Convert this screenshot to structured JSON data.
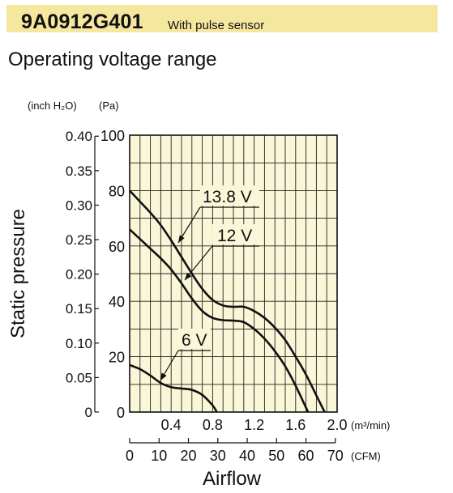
{
  "header": {
    "model": "9A0912G401",
    "subtitle": "With pulse sensor",
    "accent": "#f6e79f"
  },
  "title": "Operating voltage range",
  "chart_data": {
    "type": "line",
    "background": "#faf6d8",
    "grid": true,
    "xlabel": "Airflow",
    "ylabel": "Static pressure",
    "x_primary": {
      "unit": "(m³/min)",
      "range": [
        0,
        2.0
      ],
      "tick_labels": [
        "0.4",
        "0.8",
        "1.2",
        "1.6",
        "2.0"
      ],
      "tick_values": [
        0.4,
        0.8,
        1.2,
        1.6,
        2.0
      ]
    },
    "x_secondary": {
      "unit": "(CFM)",
      "tick_labels": [
        "0",
        "10",
        "20",
        "30",
        "40",
        "50",
        "60",
        "70"
      ],
      "tick_values": [
        0,
        10,
        20,
        30,
        40,
        50,
        60,
        70
      ]
    },
    "y_primary": {
      "unit": "(Pa)",
      "range": [
        0,
        100
      ],
      "tick_labels": [
        "0",
        "20",
        "40",
        "60",
        "80",
        "100"
      ],
      "tick_values": [
        0,
        20,
        40,
        60,
        80,
        100
      ]
    },
    "y_secondary": {
      "unit": "(inch H₂O)",
      "tick_labels": [
        "0",
        "0.05",
        "0.10",
        "0.15",
        "0.20",
        "0.25",
        "0.30",
        "0.35",
        "0.40"
      ],
      "tick_values": [
        0,
        0.05,
        0.1,
        0.15,
        0.2,
        0.25,
        0.3,
        0.35,
        0.4
      ]
    },
    "series": [
      {
        "name": "13.8 V",
        "x": [
          0,
          0.1,
          0.2,
          0.3,
          0.4,
          0.5,
          0.6,
          0.7,
          0.8,
          0.9,
          1.0,
          1.1,
          1.2,
          1.3,
          1.4,
          1.5,
          1.6,
          1.7,
          1.8,
          1.88
        ],
        "y": [
          80,
          76,
          72,
          67.5,
          62,
          56,
          50,
          44.5,
          40.5,
          38.5,
          38,
          38,
          36.5,
          34,
          30.5,
          26,
          20,
          13.5,
          6,
          0
        ]
      },
      {
        "name": "12 V",
        "x": [
          0,
          0.1,
          0.2,
          0.3,
          0.4,
          0.5,
          0.6,
          0.7,
          0.8,
          0.9,
          1.0,
          1.1,
          1.2,
          1.3,
          1.4,
          1.5,
          1.6,
          1.72
        ],
        "y": [
          66,
          62.5,
          59,
          55.5,
          51.5,
          46.5,
          41,
          36.5,
          34,
          33.2,
          33,
          32.5,
          30,
          26.5,
          22,
          16.5,
          9.5,
          0
        ]
      },
      {
        "name": "6 V",
        "x": [
          0,
          0.1,
          0.2,
          0.3,
          0.4,
          0.5,
          0.6,
          0.7,
          0.8,
          0.84
        ],
        "y": [
          17,
          15.5,
          13.2,
          10.5,
          9,
          8.5,
          8,
          6.2,
          2.4,
          0
        ]
      }
    ]
  }
}
